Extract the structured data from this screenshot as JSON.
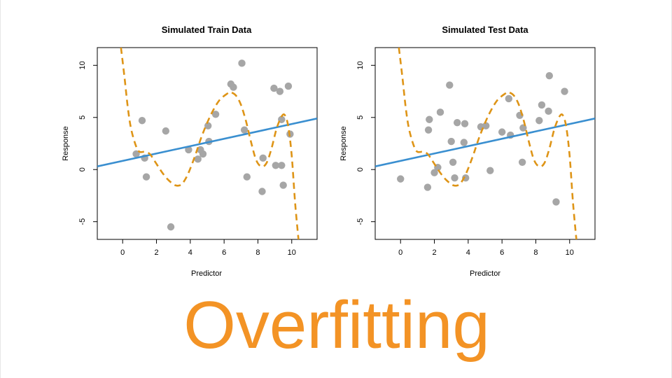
{
  "slide_title": "Overfitting",
  "colors": {
    "points": "#a6a6a6",
    "linear_fit": "#3a8fd0",
    "flexible_fit": "#de9416",
    "title": "#f39325"
  },
  "chart_data": [
    {
      "type": "scatter",
      "title": "Simulated Train Data",
      "xlabel": "Predictor",
      "ylabel": "Response",
      "xlim": [
        -1.5,
        11.5
      ],
      "ylim": [
        -6.7,
        11.7
      ],
      "xticks": [
        0,
        2,
        4,
        6,
        8,
        10
      ],
      "yticks": [
        -5,
        0,
        5,
        10
      ],
      "points": {
        "x": [
          0.8,
          1.15,
          1.3,
          1.4,
          2.55,
          2.85,
          3.9,
          4.45,
          4.6,
          4.75,
          5.05,
          5.1,
          5.5,
          6.4,
          6.55,
          7.05,
          7.2,
          7.35,
          8.25,
          8.3,
          8.95,
          9.05,
          9.3,
          9.4,
          9.4,
          9.5,
          9.8,
          9.9
        ],
        "y": [
          1.5,
          4.7,
          1.1,
          -0.7,
          3.7,
          -5.5,
          1.9,
          1.0,
          1.9,
          1.5,
          4.2,
          2.7,
          5.3,
          8.2,
          7.9,
          10.2,
          3.8,
          -0.7,
          -2.1,
          1.1,
          7.8,
          0.4,
          7.5,
          4.8,
          0.4,
          -1.5,
          8.0,
          3.4
        ]
      },
      "linear_fit": {
        "x": [
          -1.5,
          11.5
        ],
        "y": [
          0.3,
          4.9
        ]
      },
      "flexible_fit": {
        "x": [
          -0.1,
          0.1,
          0.3,
          0.5,
          0.8,
          1.0,
          1.3,
          1.6,
          1.9,
          2.3,
          2.7,
          3.1,
          3.4,
          3.6,
          3.9,
          4.3,
          4.7,
          5.2,
          5.7,
          6.2,
          6.4,
          6.7,
          7.0,
          7.3,
          7.6,
          7.9,
          8.2,
          8.5,
          8.8,
          9.1,
          9.4,
          9.6,
          9.8,
          10.0,
          10.2,
          10.4
        ],
        "y": [
          11.7,
          9.0,
          6.0,
          3.9,
          2.2,
          1.7,
          1.7,
          1.5,
          0.8,
          -0.2,
          -1.0,
          -1.5,
          -1.5,
          -1.2,
          -0.3,
          1.4,
          3.3,
          5.2,
          6.6,
          7.3,
          7.4,
          7.1,
          6.2,
          4.6,
          2.6,
          0.9,
          0.3,
          0.6,
          2.0,
          3.9,
          5.1,
          5.2,
          4.1,
          1.3,
          -3.2,
          -6.7
        ]
      }
    },
    {
      "type": "scatter",
      "title": "Simulated Test Data",
      "xlabel": "Predictor",
      "ylabel": "Response",
      "xlim": [
        -1.5,
        11.5
      ],
      "ylim": [
        -6.7,
        11.7
      ],
      "xticks": [
        0,
        2,
        4,
        6,
        8,
        10
      ],
      "yticks": [
        -5,
        0,
        5,
        10
      ],
      "points": {
        "x": [
          0.0,
          1.6,
          1.65,
          1.7,
          2.0,
          2.2,
          2.35,
          2.9,
          3.0,
          3.1,
          3.2,
          3.35,
          3.75,
          3.8,
          3.85,
          4.75,
          5.05,
          5.3,
          6.0,
          6.4,
          6.5,
          7.05,
          7.2,
          7.25,
          8.2,
          8.35,
          8.75,
          8.8,
          9.2,
          9.7
        ],
        "y": [
          -0.9,
          -1.7,
          3.8,
          4.8,
          -0.3,
          0.2,
          5.5,
          8.1,
          2.7,
          0.7,
          -0.8,
          4.5,
          2.6,
          4.4,
          -0.8,
          4.1,
          4.2,
          -0.1,
          3.6,
          6.8,
          3.3,
          5.2,
          0.7,
          4.0,
          4.7,
          6.2,
          5.6,
          9.0,
          -3.1,
          7.5
        ]
      },
      "linear_fit": {
        "x": [
          -1.5,
          11.5
        ],
        "y": [
          0.3,
          4.9
        ]
      },
      "flexible_fit": {
        "x": [
          -0.1,
          0.1,
          0.3,
          0.5,
          0.8,
          1.0,
          1.3,
          1.6,
          1.9,
          2.3,
          2.7,
          3.1,
          3.4,
          3.6,
          3.9,
          4.3,
          4.7,
          5.2,
          5.7,
          6.2,
          6.4,
          6.7,
          7.0,
          7.3,
          7.6,
          7.9,
          8.2,
          8.5,
          8.8,
          9.1,
          9.4,
          9.6,
          9.8,
          10.0,
          10.2,
          10.4
        ],
        "y": [
          11.7,
          9.0,
          6.0,
          3.9,
          2.2,
          1.7,
          1.7,
          1.5,
          0.8,
          -0.2,
          -1.0,
          -1.5,
          -1.5,
          -1.2,
          -0.3,
          1.4,
          3.3,
          5.2,
          6.6,
          7.3,
          7.4,
          7.1,
          6.2,
          4.6,
          2.6,
          0.9,
          0.3,
          0.6,
          2.0,
          3.9,
          5.1,
          5.2,
          4.1,
          1.3,
          -3.2,
          -6.7
        ]
      }
    }
  ]
}
